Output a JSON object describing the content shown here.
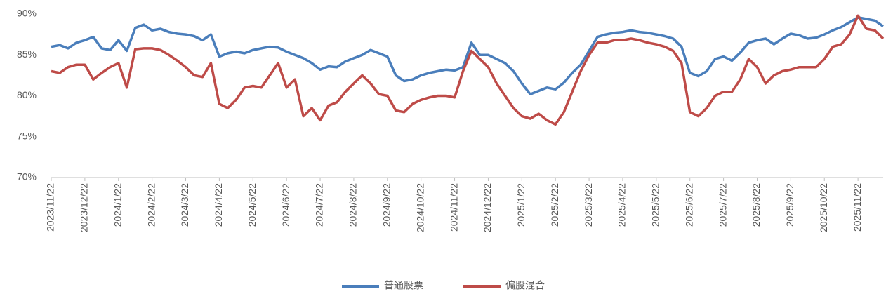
{
  "chart_data": {
    "type": "line",
    "categories": [
      "2023/11/22",
      null,
      null,
      null,
      "2023/12/22",
      null,
      null,
      null,
      "2024/1/22",
      null,
      null,
      null,
      "2024/2/22",
      null,
      null,
      null,
      "2024/3/22",
      null,
      null,
      null,
      "2024/4/22",
      null,
      null,
      null,
      "2024/5/22",
      null,
      null,
      null,
      "2024/6/22",
      null,
      null,
      null,
      "2024/7/22",
      null,
      null,
      null,
      "2024/8/22",
      null,
      null,
      null,
      "2024/9/22",
      null,
      null,
      null,
      "2024/10/22",
      null,
      null,
      null,
      "2024/11/22",
      null,
      null,
      null,
      "2024/12/22",
      null,
      null,
      null,
      "2025/1/22",
      null,
      null,
      null,
      "2025/2/22",
      null,
      null,
      null,
      "2025/3/22",
      null,
      null,
      null,
      "2025/4/22",
      null,
      null,
      null,
      "2025/5/22",
      null,
      null,
      null,
      "2025/6/22",
      null,
      null,
      null,
      "2025/7/22",
      null,
      null,
      null,
      "2025/8/22",
      null,
      null,
      null,
      "2025/9/22",
      null,
      null,
      null,
      "2025/10/22",
      null,
      null,
      null,
      "2025/11/22",
      null,
      null,
      null
    ],
    "series": [
      {
        "name": "普通股票",
        "color": "#4a7ebb",
        "values": [
          86,
          86.2,
          85.8,
          86.5,
          86.8,
          87.2,
          85.8,
          85.6,
          86.8,
          85.5,
          88.3,
          88.7,
          88.0,
          88.2,
          87.8,
          87.6,
          87.5,
          87.3,
          86.8,
          87.5,
          84.8,
          85.2,
          85.4,
          85.2,
          85.6,
          85.8,
          86.0,
          85.9,
          85.4,
          85.0,
          84.6,
          84.0,
          83.2,
          83.6,
          83.5,
          84.2,
          84.6,
          85.0,
          85.6,
          85.2,
          84.8,
          82.5,
          81.8,
          82.0,
          82.5,
          82.8,
          83.0,
          83.2,
          83.1,
          83.5,
          86.5,
          85.0,
          85.0,
          84.5,
          84.0,
          83.0,
          81.5,
          80.2,
          80.6,
          81.0,
          80.8,
          81.6,
          82.8,
          83.8,
          85.5,
          87.2,
          87.5,
          87.7,
          87.8,
          88.0,
          87.8,
          87.7,
          87.5,
          87.3,
          87.0,
          86.0,
          82.8,
          82.4,
          83.0,
          84.5,
          84.8,
          84.3,
          85.3,
          86.5,
          86.8,
          87.0,
          86.3,
          87.0,
          87.6,
          87.4,
          87.0,
          87.1,
          87.5,
          88.0,
          88.4,
          89.0,
          89.6,
          89.4,
          89.2,
          88.5
        ]
      },
      {
        "name": "偏股混合",
        "color": "#be4b48",
        "values": [
          83,
          82.8,
          83.5,
          83.8,
          83.8,
          82.0,
          82.8,
          83.5,
          84.0,
          81.0,
          85.7,
          85.8,
          85.8,
          85.6,
          85.0,
          84.3,
          83.5,
          82.5,
          82.3,
          84.0,
          79.0,
          78.5,
          79.5,
          81.0,
          81.2,
          81.0,
          82.5,
          84.0,
          81.0,
          82.0,
          77.5,
          78.5,
          77.0,
          78.8,
          79.2,
          80.5,
          81.5,
          82.5,
          81.5,
          80.2,
          80.0,
          78.2,
          78.0,
          79.0,
          79.5,
          79.8,
          80.0,
          80.0,
          79.8,
          83.0,
          85.5,
          84.5,
          83.5,
          81.5,
          80.0,
          78.5,
          77.5,
          77.2,
          77.8,
          77.0,
          76.5,
          78.0,
          80.5,
          83.0,
          85.0,
          86.5,
          86.5,
          86.8,
          86.8,
          87.0,
          86.8,
          86.5,
          86.3,
          86.0,
          85.5,
          84.0,
          78.0,
          77.5,
          78.5,
          80.0,
          80.5,
          80.5,
          82.0,
          84.5,
          83.5,
          81.5,
          82.5,
          83.0,
          83.2,
          83.5,
          83.5,
          83.5,
          84.5,
          86.0,
          86.3,
          87.5,
          89.8,
          88.2,
          88.0,
          87.0
        ]
      }
    ],
    "ylim": [
      70,
      90
    ],
    "yticks": [
      {
        "value": 70,
        "label": "70%"
      },
      {
        "value": 75,
        "label": "75%"
      },
      {
        "value": 80,
        "label": "80%"
      },
      {
        "value": 85,
        "label": "85%"
      },
      {
        "value": 90,
        "label": "90%"
      }
    ],
    "grid": false
  }
}
